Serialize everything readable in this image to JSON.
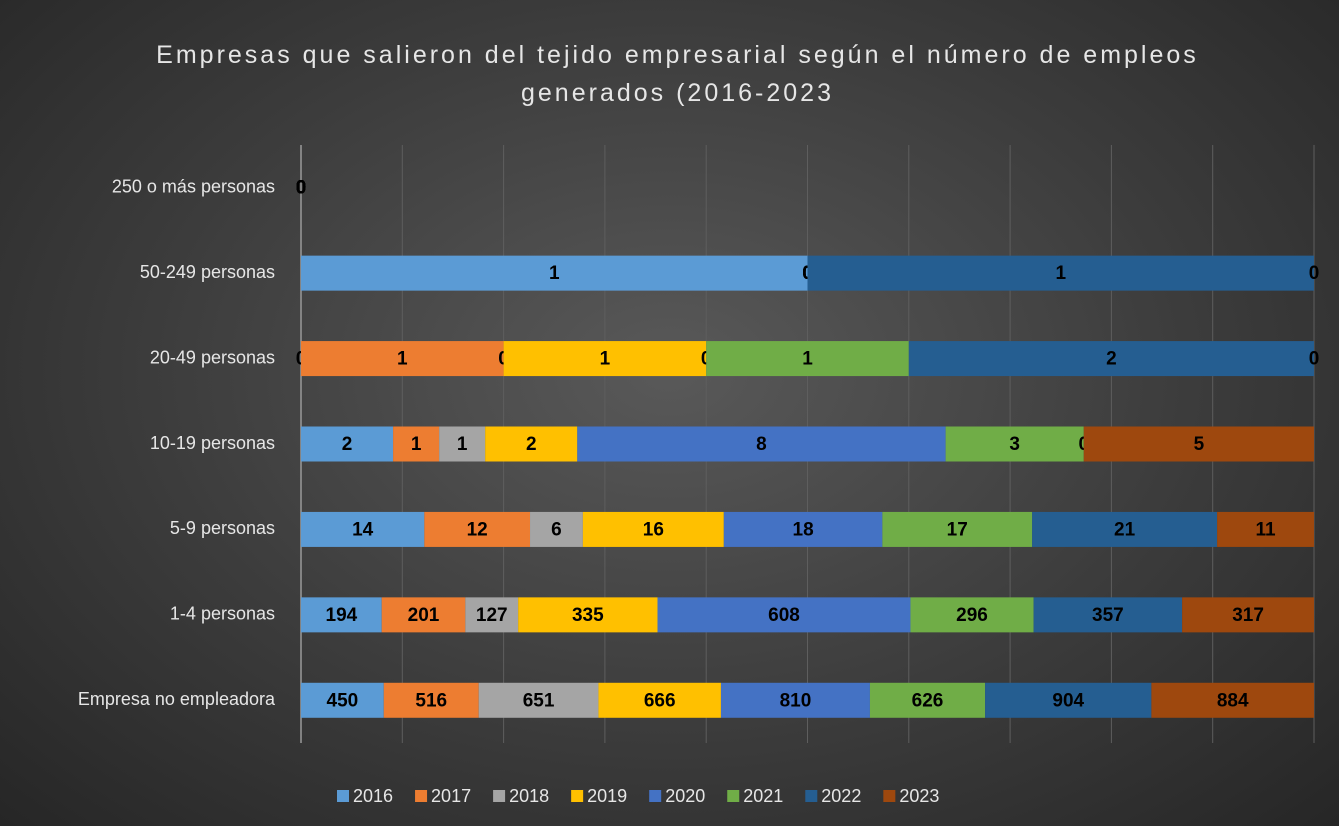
{
  "chart_data": {
    "type": "bar",
    "orientation": "horizontal",
    "stacked": "percent",
    "title": "Empresas que salieron del tejido empresarial según el número de empleos generados (2016-2023",
    "categories": [
      "Empresa no empleadora",
      "1-4 personas",
      "5-9 personas",
      "10-19 personas",
      "20-49 personas",
      "50-249 personas",
      "250 o más personas"
    ],
    "series": [
      {
        "name": "2016",
        "color": "#5b9bd5",
        "values": [
          450,
          194,
          14,
          2,
          0,
          1,
          0
        ]
      },
      {
        "name": "2017",
        "color": "#ed7d31",
        "values": [
          516,
          201,
          12,
          1,
          1,
          0,
          0
        ]
      },
      {
        "name": "2018",
        "color": "#a5a5a5",
        "values": [
          651,
          127,
          6,
          1,
          0,
          0,
          0
        ]
      },
      {
        "name": "2019",
        "color": "#ffc000",
        "values": [
          666,
          335,
          16,
          2,
          1,
          0,
          0
        ]
      },
      {
        "name": "2020",
        "color": "#4472c4",
        "values": [
          810,
          608,
          18,
          8,
          0,
          0,
          0
        ]
      },
      {
        "name": "2021",
        "color": "#70ad47",
        "values": [
          626,
          296,
          17,
          3,
          1,
          0,
          0
        ]
      },
      {
        "name": "2022",
        "color": "#255e91",
        "values": [
          904,
          357,
          21,
          0,
          2,
          1,
          0
        ]
      },
      {
        "name": "2023",
        "color": "#9e480e",
        "values": [
          884,
          317,
          11,
          5,
          0,
          0,
          0
        ]
      }
    ],
    "xlim": [
      0,
      100
    ],
    "xticks": [
      0,
      10,
      20,
      30,
      40,
      50,
      60,
      70,
      80,
      90,
      100
    ],
    "grid": true,
    "legend": "bottom"
  }
}
